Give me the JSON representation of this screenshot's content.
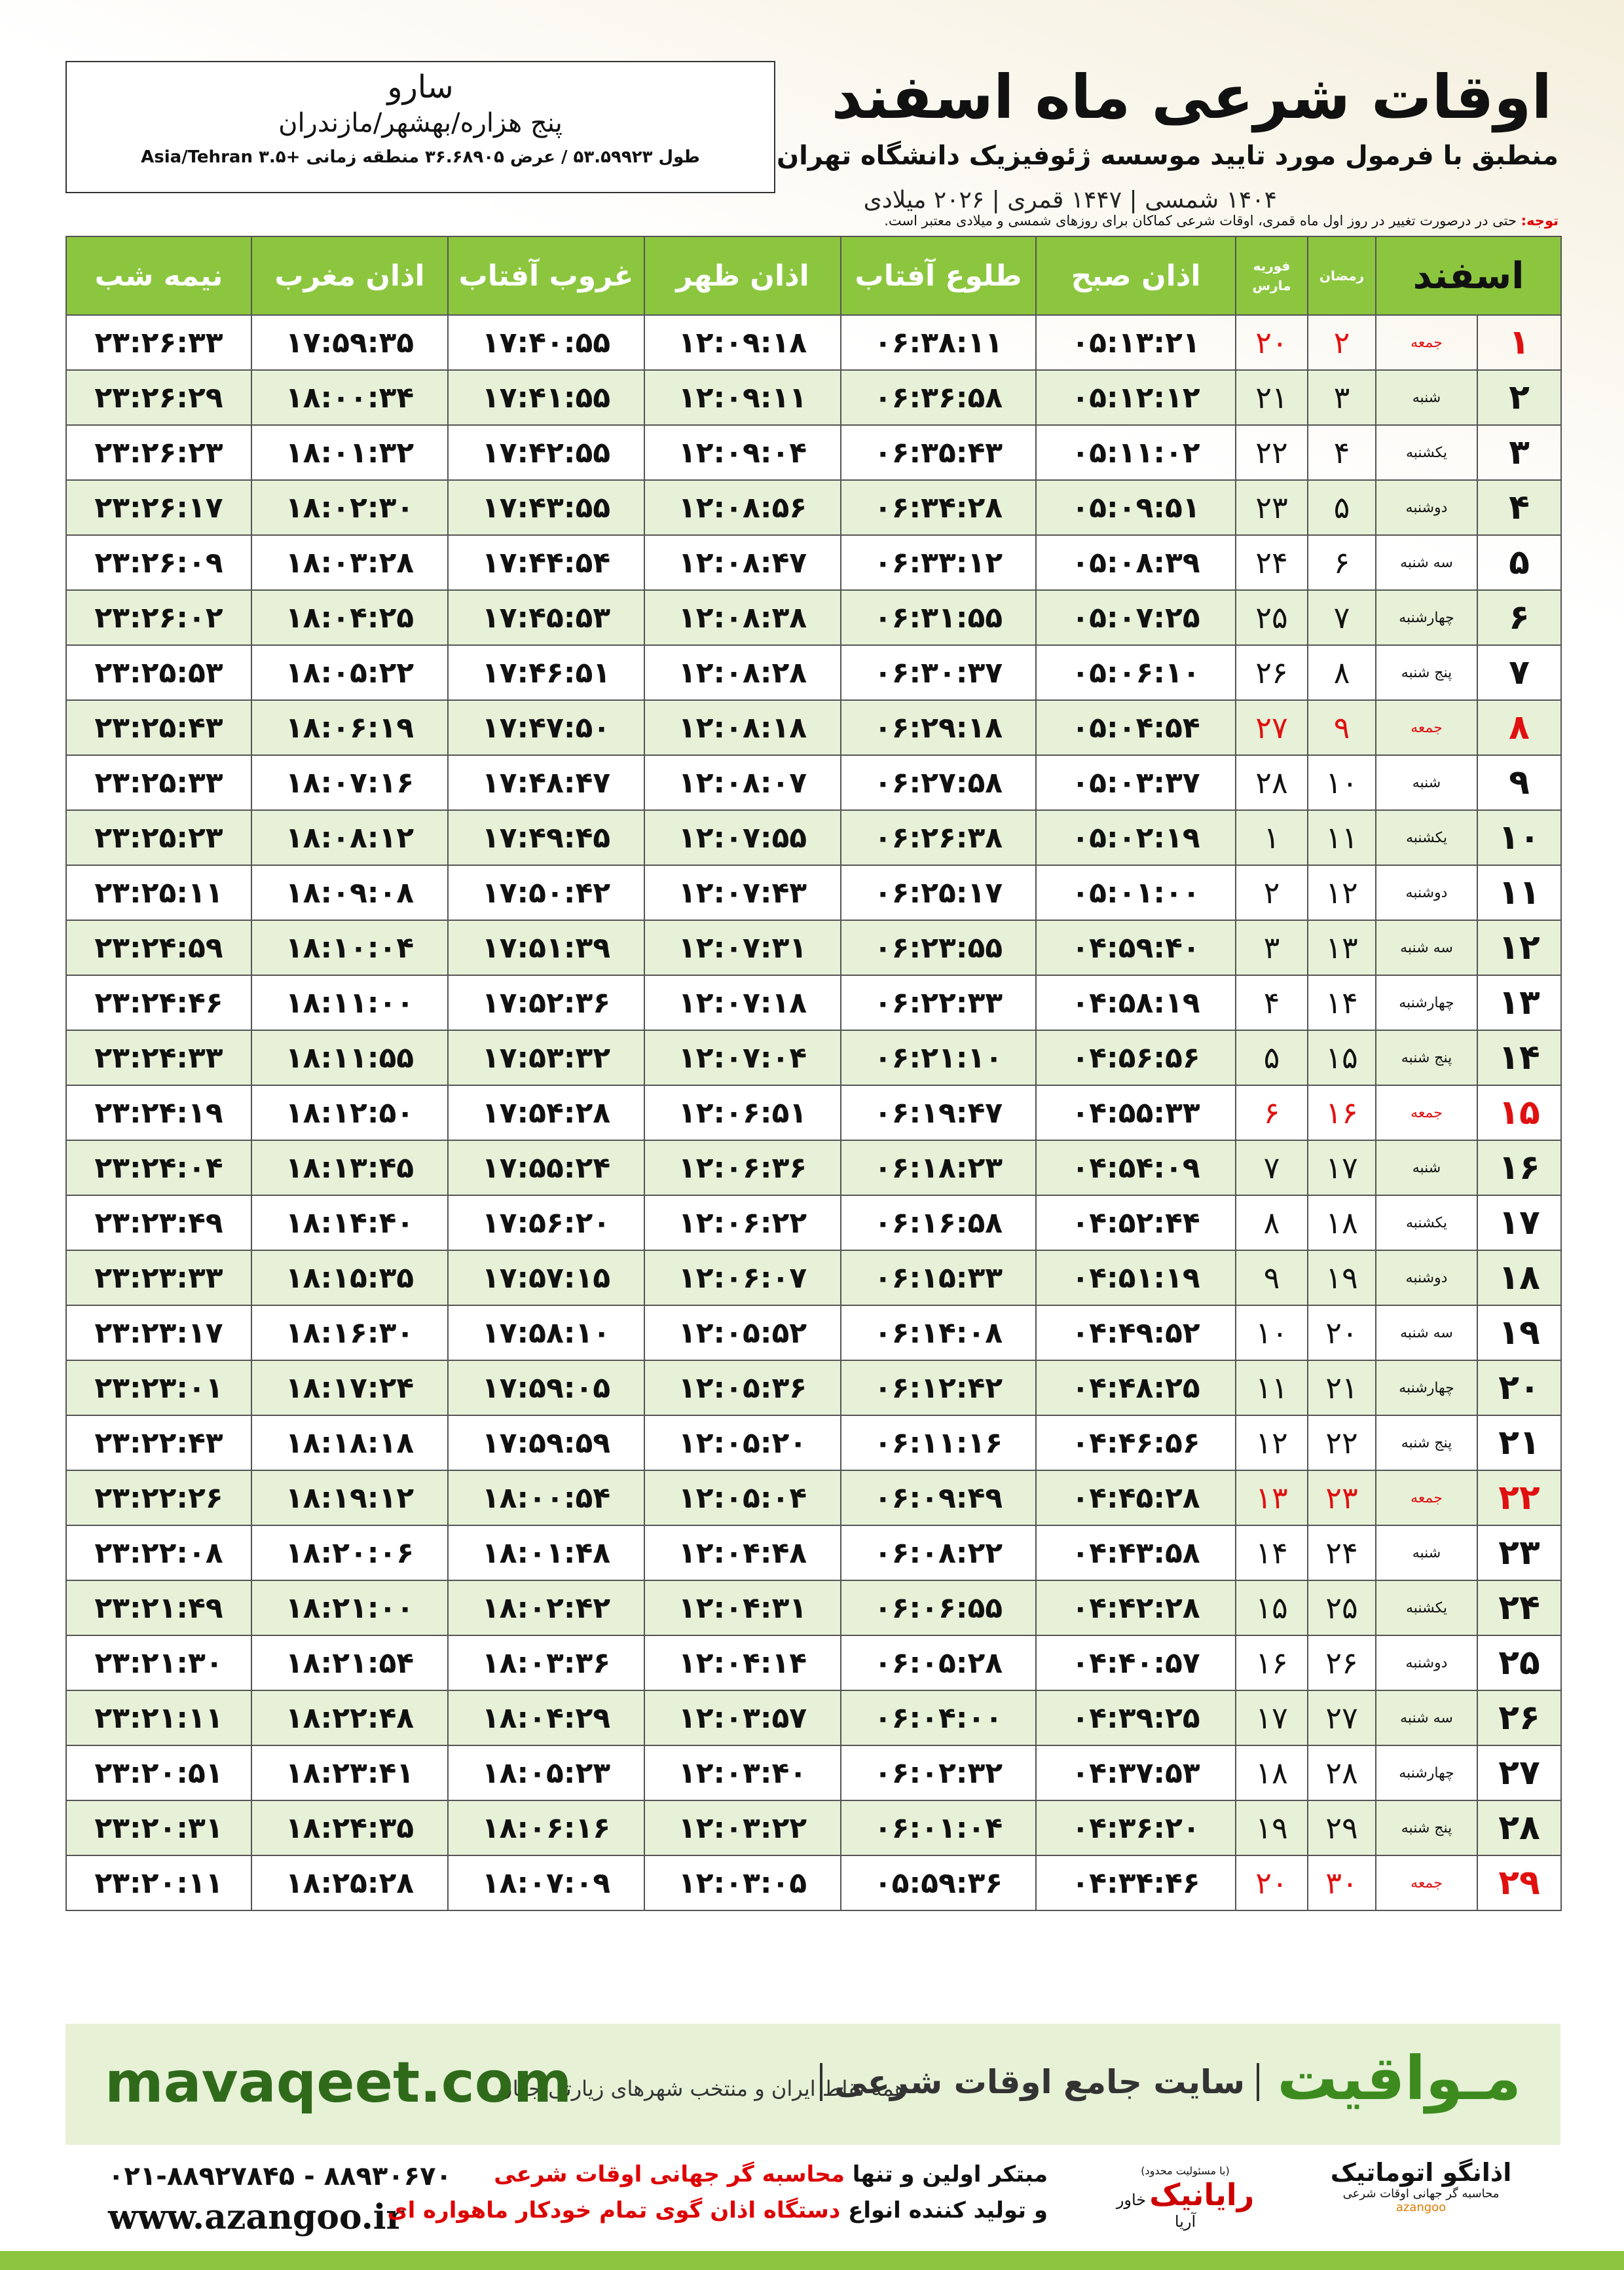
{
  "header": {
    "title": "اوقات شرعی ماه اسفند",
    "subtitle": "منطبق با فرمول مورد تایید موسسه ژئوفیزیک دانشگاه تهران",
    "dates": "۱۴۰۴ شمسی | ۱۴۴۷ قمری | ۲۰۲۶ میلادی"
  },
  "location": {
    "name": "سارو",
    "region": "پنج هزاره/بهشهر/مازندران",
    "coords": "طول ۵۳.۵۹۹۲۳ / عرض ۳۶.۶۸۹۰۵ منطقه زمانی +۳.۵ Asia/Tehran"
  },
  "note": {
    "label": "توجه:",
    "text": "حتی در درصورت تغییر در روز اول ماه قمری، اوقات شرعی کماکان برای روزهای شمسی و میلادی معتبر است."
  },
  "table": {
    "headers": {
      "month": "اسفند",
      "ramadan": "رمضان",
      "gregorian": [
        "فوریه",
        "مارس"
      ],
      "times": [
        "اذان صبح",
        "طلوع آفتاب",
        "اذان ظهر",
        "غروب آفتاب",
        "اذان مغرب",
        "نیمه شب"
      ]
    },
    "rows": [
      [
        "۱",
        "جمعه",
        "۲",
        "۲۰",
        "۰۵:۱۳:۲۱",
        "۰۶:۳۸:۱۱",
        "۱۲:۰۹:۱۸",
        "۱۷:۴۰:۵۵",
        "۱۷:۵۹:۳۵",
        "۲۳:۲۶:۳۳"
      ],
      [
        "۲",
        "شنبه",
        "۳",
        "۲۱",
        "۰۵:۱۲:۱۲",
        "۰۶:۳۶:۵۸",
        "۱۲:۰۹:۱۱",
        "۱۷:۴۱:۵۵",
        "۱۸:۰۰:۳۴",
        "۲۳:۲۶:۲۹"
      ],
      [
        "۳",
        "یکشنبه",
        "۴",
        "۲۲",
        "۰۵:۱۱:۰۲",
        "۰۶:۳۵:۴۳",
        "۱۲:۰۹:۰۴",
        "۱۷:۴۲:۵۵",
        "۱۸:۰۱:۳۲",
        "۲۳:۲۶:۲۳"
      ],
      [
        "۴",
        "دوشنبه",
        "۵",
        "۲۳",
        "۰۵:۰۹:۵۱",
        "۰۶:۳۴:۲۸",
        "۱۲:۰۸:۵۶",
        "۱۷:۴۳:۵۵",
        "۱۸:۰۲:۳۰",
        "۲۳:۲۶:۱۷"
      ],
      [
        "۵",
        "سه شنبه",
        "۶",
        "۲۴",
        "۰۵:۰۸:۳۹",
        "۰۶:۳۳:۱۲",
        "۱۲:۰۸:۴۷",
        "۱۷:۴۴:۵۴",
        "۱۸:۰۳:۲۸",
        "۲۳:۲۶:۰۹"
      ],
      [
        "۶",
        "چهارشنبه",
        "۷",
        "۲۵",
        "۰۵:۰۷:۲۵",
        "۰۶:۳۱:۵۵",
        "۱۲:۰۸:۳۸",
        "۱۷:۴۵:۵۳",
        "۱۸:۰۴:۲۵",
        "۲۳:۲۶:۰۲"
      ],
      [
        "۷",
        "پنج شنبه",
        "۸",
        "۲۶",
        "۰۵:۰۶:۱۰",
        "۰۶:۳۰:۳۷",
        "۱۲:۰۸:۲۸",
        "۱۷:۴۶:۵۱",
        "۱۸:۰۵:۲۲",
        "۲۳:۲۵:۵۳"
      ],
      [
        "۸",
        "جمعه",
        "۹",
        "۲۷",
        "۰۵:۰۴:۵۴",
        "۰۶:۲۹:۱۸",
        "۱۲:۰۸:۱۸",
        "۱۷:۴۷:۵۰",
        "۱۸:۰۶:۱۹",
        "۲۳:۲۵:۴۳"
      ],
      [
        "۹",
        "شنبه",
        "۱۰",
        "۲۸",
        "۰۵:۰۳:۳۷",
        "۰۶:۲۷:۵۸",
        "۱۲:۰۸:۰۷",
        "۱۷:۴۸:۴۷",
        "۱۸:۰۷:۱۶",
        "۲۳:۲۵:۳۳"
      ],
      [
        "۱۰",
        "یکشنبه",
        "۱۱",
        "۱",
        "۰۵:۰۲:۱۹",
        "۰۶:۲۶:۳۸",
        "۱۲:۰۷:۵۵",
        "۱۷:۴۹:۴۵",
        "۱۸:۰۸:۱۲",
        "۲۳:۲۵:۲۳"
      ],
      [
        "۱۱",
        "دوشنبه",
        "۱۲",
        "۲",
        "۰۵:۰۱:۰۰",
        "۰۶:۲۵:۱۷",
        "۱۲:۰۷:۴۳",
        "۱۷:۵۰:۴۲",
        "۱۸:۰۹:۰۸",
        "۲۳:۲۵:۱۱"
      ],
      [
        "۱۲",
        "سه شنبه",
        "۱۳",
        "۳",
        "۰۴:۵۹:۴۰",
        "۰۶:۲۳:۵۵",
        "۱۲:۰۷:۳۱",
        "۱۷:۵۱:۳۹",
        "۱۸:۱۰:۰۴",
        "۲۳:۲۴:۵۹"
      ],
      [
        "۱۳",
        "چهارشنبه",
        "۱۴",
        "۴",
        "۰۴:۵۸:۱۹",
        "۰۶:۲۲:۳۳",
        "۱۲:۰۷:۱۸",
        "۱۷:۵۲:۳۶",
        "۱۸:۱۱:۰۰",
        "۲۳:۲۴:۴۶"
      ],
      [
        "۱۴",
        "پنج شنبه",
        "۱۵",
        "۵",
        "۰۴:۵۶:۵۶",
        "۰۶:۲۱:۱۰",
        "۱۲:۰۷:۰۴",
        "۱۷:۵۳:۳۲",
        "۱۸:۱۱:۵۵",
        "۲۳:۲۴:۳۳"
      ],
      [
        "۱۵",
        "جمعه",
        "۱۶",
        "۶",
        "۰۴:۵۵:۳۳",
        "۰۶:۱۹:۴۷",
        "۱۲:۰۶:۵۱",
        "۱۷:۵۴:۲۸",
        "۱۸:۱۲:۵۰",
        "۲۳:۲۴:۱۹"
      ],
      [
        "۱۶",
        "شنبه",
        "۱۷",
        "۷",
        "۰۴:۵۴:۰۹",
        "۰۶:۱۸:۲۳",
        "۱۲:۰۶:۳۶",
        "۱۷:۵۵:۲۴",
        "۱۸:۱۳:۴۵",
        "۲۳:۲۴:۰۴"
      ],
      [
        "۱۷",
        "یکشنبه",
        "۱۸",
        "۸",
        "۰۴:۵۲:۴۴",
        "۰۶:۱۶:۵۸",
        "۱۲:۰۶:۲۲",
        "۱۷:۵۶:۲۰",
        "۱۸:۱۴:۴۰",
        "۲۳:۲۳:۴۹"
      ],
      [
        "۱۸",
        "دوشنبه",
        "۱۹",
        "۹",
        "۰۴:۵۱:۱۹",
        "۰۶:۱۵:۳۳",
        "۱۲:۰۶:۰۷",
        "۱۷:۵۷:۱۵",
        "۱۸:۱۵:۳۵",
        "۲۳:۲۳:۳۳"
      ],
      [
        "۱۹",
        "سه شنبه",
        "۲۰",
        "۱۰",
        "۰۴:۴۹:۵۲",
        "۰۶:۱۴:۰۸",
        "۱۲:۰۵:۵۲",
        "۱۷:۵۸:۱۰",
        "۱۸:۱۶:۳۰",
        "۲۳:۲۳:۱۷"
      ],
      [
        "۲۰",
        "چهارشنبه",
        "۲۱",
        "۱۱",
        "۰۴:۴۸:۲۵",
        "۰۶:۱۲:۴۲",
        "۱۲:۰۵:۳۶",
        "۱۷:۵۹:۰۵",
        "۱۸:۱۷:۲۴",
        "۲۳:۲۳:۰۱"
      ],
      [
        "۲۱",
        "پنج شنبه",
        "۲۲",
        "۱۲",
        "۰۴:۴۶:۵۶",
        "۰۶:۱۱:۱۶",
        "۱۲:۰۵:۲۰",
        "۱۷:۵۹:۵۹",
        "۱۸:۱۸:۱۸",
        "۲۳:۲۲:۴۳"
      ],
      [
        "۲۲",
        "جمعه",
        "۲۳",
        "۱۳",
        "۰۴:۴۵:۲۸",
        "۰۶:۰۹:۴۹",
        "۱۲:۰۵:۰۴",
        "۱۸:۰۰:۵۴",
        "۱۸:۱۹:۱۲",
        "۲۳:۲۲:۲۶"
      ],
      [
        "۲۳",
        "شنبه",
        "۲۴",
        "۱۴",
        "۰۴:۴۳:۵۸",
        "۰۶:۰۸:۲۲",
        "۱۲:۰۴:۴۸",
        "۱۸:۰۱:۴۸",
        "۱۸:۲۰:۰۶",
        "۲۳:۲۲:۰۸"
      ],
      [
        "۲۴",
        "یکشنبه",
        "۲۵",
        "۱۵",
        "۰۴:۴۲:۲۸",
        "۰۶:۰۶:۵۵",
        "۱۲:۰۴:۳۱",
        "۱۸:۰۲:۴۲",
        "۱۸:۲۱:۰۰",
        "۲۳:۲۱:۴۹"
      ],
      [
        "۲۵",
        "دوشنبه",
        "۲۶",
        "۱۶",
        "۰۴:۴۰:۵۷",
        "۰۶:۰۵:۲۸",
        "۱۲:۰۴:۱۴",
        "۱۸:۰۳:۳۶",
        "۱۸:۲۱:۵۴",
        "۲۳:۲۱:۳۰"
      ],
      [
        "۲۶",
        "سه شنبه",
        "۲۷",
        "۱۷",
        "۰۴:۳۹:۲۵",
        "۰۶:۰۴:۰۰",
        "۱۲:۰۳:۵۷",
        "۱۸:۰۴:۲۹",
        "۱۸:۲۲:۴۸",
        "۲۳:۲۱:۱۱"
      ],
      [
        "۲۷",
        "چهارشنبه",
        "۲۸",
        "۱۸",
        "۰۴:۳۷:۵۳",
        "۰۶:۰۲:۳۲",
        "۱۲:۰۳:۴۰",
        "۱۸:۰۵:۲۳",
        "۱۸:۲۳:۴۱",
        "۲۳:۲۰:۵۱"
      ],
      [
        "۲۸",
        "پنج شنبه",
        "۲۹",
        "۱۹",
        "۰۴:۳۶:۲۰",
        "۰۶:۰۱:۰۴",
        "۱۲:۰۳:۲۲",
        "۱۸:۰۶:۱۶",
        "۱۸:۲۴:۳۵",
        "۲۳:۲۰:۳۱"
      ],
      [
        "۲۹",
        "جمعه",
        "۳۰",
        "۲۰",
        "۰۴:۳۴:۴۶",
        "۰۵:۵۹:۳۶",
        "۱۲:۰۳:۰۵",
        "۱۸:۰۷:۰۹",
        "۱۸:۲۵:۲۸",
        "۲۳:۲۰:۱۱"
      ]
    ]
  },
  "footer": {
    "brand": "مـواقیت",
    "slogan": "سایت جامع اوقات شرعی",
    "coverage": "همه نقاط ایران و منتخب شهرهای زیارتی جهان",
    "site": "mavaqeet.com",
    "phone": "۰۲۱-۸۸۹۲۷۸۴۵ - ۸۸۹۳۰۶۷۰",
    "web": "www.azangoo.ir",
    "promo": [
      [
        "مبتکر اولین و تنها ",
        "محاسبه گر جهانی اوقات شرعی"
      ],
      [
        "و تولید کننده انواع ",
        "دستگاه اذان گوی تمام خودکار ماهواره ای"
      ]
    ],
    "logo1": {
      "name": "رایانیک",
      "sub": "خاور آریا",
      "note": "(با مسئولیت محدود)"
    },
    "logo2": {
      "name": "اذانگو اتوماتیک",
      "sub": "محاسبه گر جهانی اوقات شرعی",
      "latin": "azangoo"
    }
  }
}
